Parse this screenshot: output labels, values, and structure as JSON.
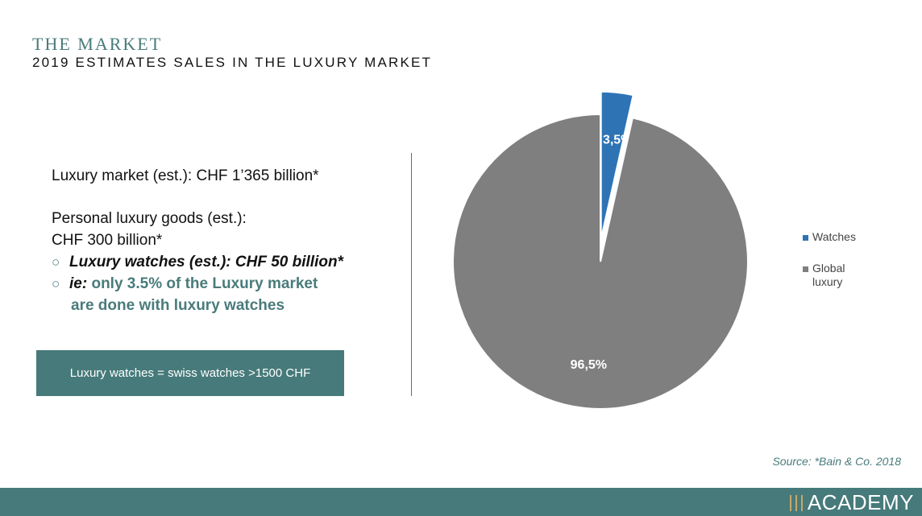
{
  "header": {
    "title": "THE MARKET",
    "subtitle": "2019 ESTIMATES SALES IN THE LUXURY MARKET"
  },
  "text": {
    "line1": "Luxury market (est.): CHF 1’365 billion*",
    "line2": "Personal luxury goods (est.):",
    "line3": "CHF 300 billion*",
    "bullet_mark": "○",
    "bullet1": "Luxury watches (est.): CHF 50 billion*",
    "bullet2_ie": "ie:",
    "bullet2_rest": "only 3.5% of the Luxury market",
    "bullet2_cont": "are done with luxury watches"
  },
  "note_box": "Luxury watches  = swiss watches >1500 CHF",
  "source": "Source: *Bain & Co. 2018",
  "logo_text": "ACADEMY",
  "colors": {
    "accent": "#477a7a",
    "watches": "#2e74b5",
    "global": "#7f7f7f",
    "logo_gold": "#c8a86b"
  },
  "chart_data": {
    "type": "pie",
    "slices": [
      {
        "name": "Watches",
        "value": 3.5,
        "label": "3,5%",
        "color": "#2e74b5",
        "exploded": true
      },
      {
        "name": "Global luxury",
        "value": 96.5,
        "label": "96,5%",
        "color": "#7f7f7f",
        "exploded": false
      }
    ],
    "legend": {
      "position": "right",
      "entries": [
        "Watches",
        "Global luxury"
      ]
    },
    "start_angle": "12 o'clock",
    "direction": "clockwise"
  }
}
